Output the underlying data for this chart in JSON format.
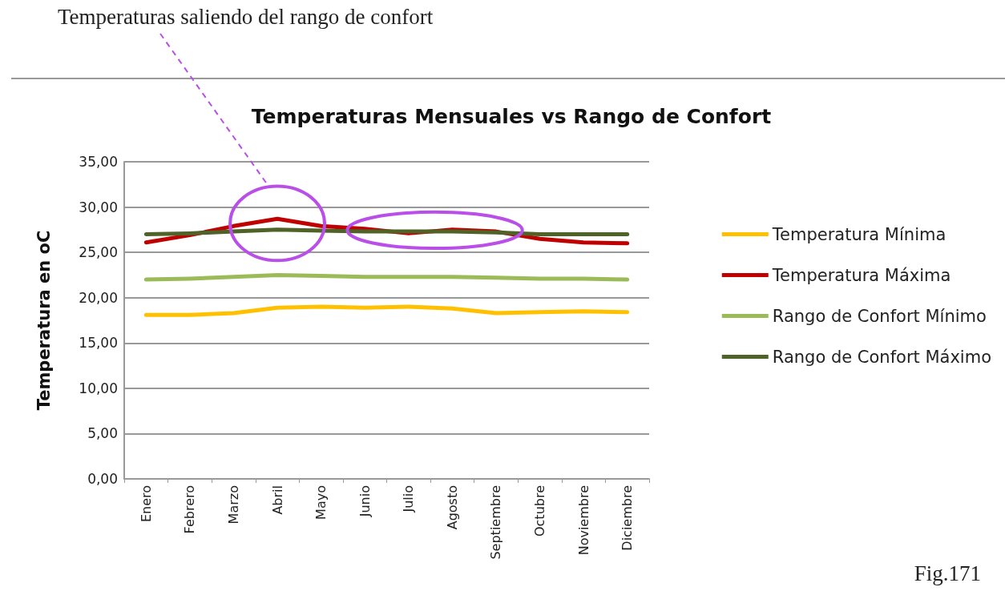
{
  "chart_data": {
    "type": "line",
    "title": "Temperaturas Mensuales vs Rango de Confort",
    "ylabel": "Temperatura en oC",
    "categories": [
      "Enero",
      "Febrero",
      "Marzo",
      "Abril",
      "Mayo",
      "Junio",
      "Julio",
      "Agosto",
      "Septiembre",
      "Octubre",
      "Noviembre",
      "Diciembre"
    ],
    "series": [
      {
        "name": "Temperatura Mínima",
        "color": "#ffc000",
        "values": [
          18.1,
          18.1,
          18.3,
          18.9,
          19.0,
          18.9,
          19.0,
          18.8,
          18.3,
          18.4,
          18.5,
          18.4
        ]
      },
      {
        "name": "Temperatura Máxima",
        "color": "#c00000",
        "values": [
          26.1,
          26.9,
          27.9,
          28.7,
          27.9,
          27.6,
          27.1,
          27.5,
          27.3,
          26.5,
          26.1,
          26.0
        ]
      },
      {
        "name": "Rango de Confort Mínimo",
        "color": "#9bbb59",
        "values": [
          22.0,
          22.1,
          22.3,
          22.5,
          22.4,
          22.3,
          22.3,
          22.3,
          22.2,
          22.1,
          22.1,
          22.0
        ]
      },
      {
        "name": "Rango de Confort Máximo",
        "color": "#4f6228",
        "values": [
          27.0,
          27.1,
          27.3,
          27.5,
          27.4,
          27.3,
          27.3,
          27.3,
          27.2,
          27.0,
          27.0,
          27.0
        ]
      }
    ],
    "ylim": [
      0,
      35
    ],
    "yticks": [
      {
        "value": 0,
        "label": "0,00"
      },
      {
        "value": 5,
        "label": "5,00"
      },
      {
        "value": 10,
        "label": "10,00"
      },
      {
        "value": 15,
        "label": "15,00"
      },
      {
        "value": 20,
        "label": "20,00"
      },
      {
        "value": 25,
        "label": "25,00"
      },
      {
        "value": 30,
        "label": "30,00"
      },
      {
        "value": 35,
        "label": "35,00"
      }
    ],
    "grid": "y",
    "legend": "right",
    "marker": "none",
    "line_style": "solid",
    "annotations": [
      "Temperaturas saliendo del rango de confort",
      "Fig.171"
    ]
  }
}
